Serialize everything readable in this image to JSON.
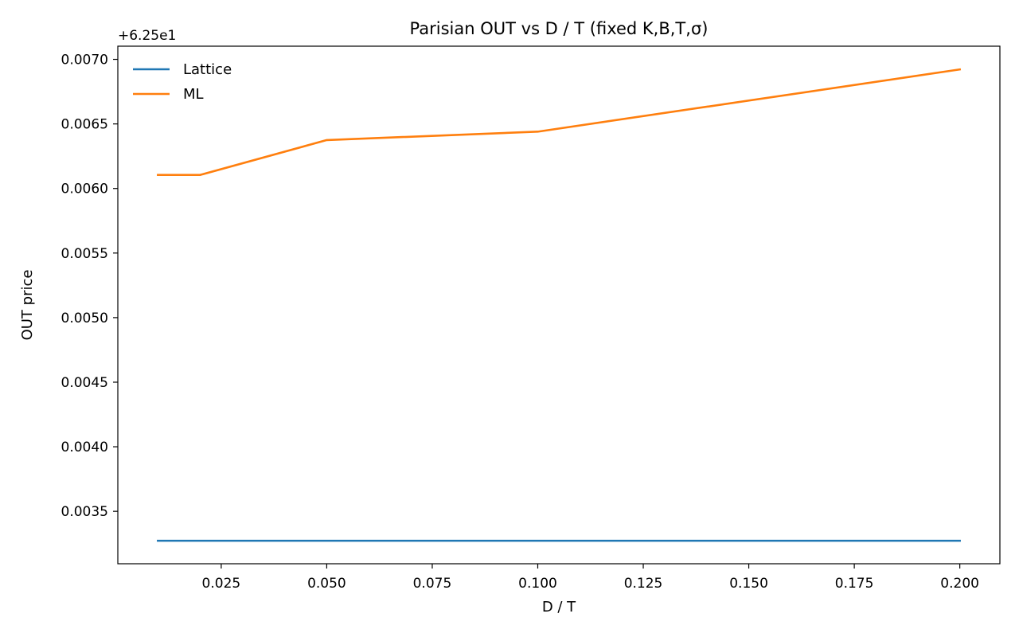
{
  "chart_data": {
    "type": "line",
    "title": "Parisian OUT vs D / T  (fixed K,B,T,σ)",
    "xlabel": "D / T",
    "ylabel": "OUT price",
    "y_offset_label": "+6.25e1",
    "x": [
      0.01,
      0.02,
      0.05,
      0.1,
      0.2
    ],
    "series": [
      {
        "name": "Lattice",
        "color": "#1f77b4",
        "values": [
          0.003272,
          0.003272,
          0.003272,
          0.003272,
          0.003272
        ]
      },
      {
        "name": "ML",
        "color": "#ff7f0e",
        "values": [
          0.006105,
          0.006105,
          0.006375,
          0.00644,
          0.006922
        ]
      }
    ],
    "xlim": [
      0.0005,
      0.2095
    ],
    "ylim": [
      0.003094,
      0.007102
    ],
    "xticks": [
      0.025,
      0.05,
      0.075,
      0.1,
      0.125,
      0.15,
      0.175,
      0.2
    ],
    "xtick_labels": [
      "0.025",
      "0.050",
      "0.075",
      "0.100",
      "0.125",
      "0.150",
      "0.175",
      "0.200"
    ],
    "yticks": [
      0.0035,
      0.004,
      0.0045,
      0.005,
      0.0055,
      0.006,
      0.0065,
      0.007
    ],
    "ytick_labels": [
      "0.0035",
      "0.0040",
      "0.0045",
      "0.0050",
      "0.0055",
      "0.0060",
      "0.0065",
      "0.0070"
    ],
    "grid": false,
    "legend_position": "top-left"
  }
}
